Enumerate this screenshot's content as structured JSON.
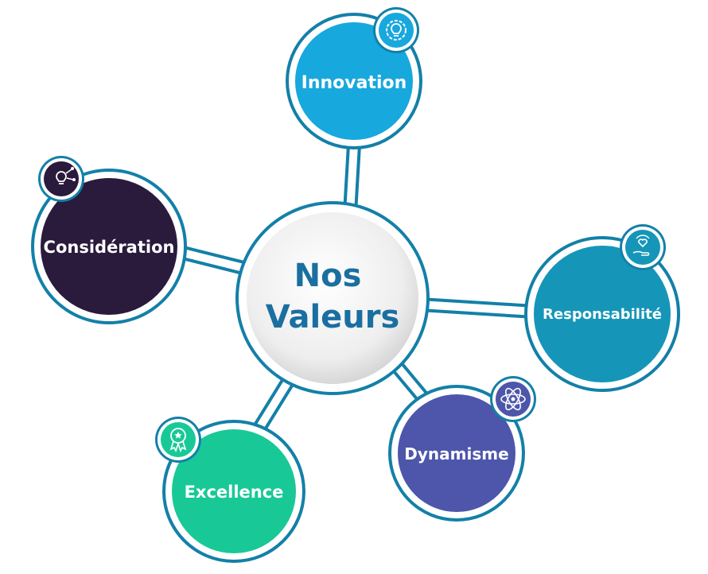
{
  "center": {
    "line1": "Nos",
    "line2": "Valeurs"
  },
  "values": [
    {
      "id": "innovation",
      "label": "Innovation",
      "color": "#17a8dd",
      "icon": "lightbulb-gear-icon",
      "badge_color": "#17a8dd"
    },
    {
      "id": "consideration",
      "label": "Considération",
      "color": "#2a1a3c",
      "icon": "lightbulb-network-icon",
      "badge_color": "#2a1a3c"
    },
    {
      "id": "responsabilite",
      "label": "Responsabilité",
      "color": "#1596b8",
      "icon": "hand-heart-icon",
      "badge_color": "#1596b8"
    },
    {
      "id": "dynamisme",
      "label": "Dynamisme",
      "color": "#4d56aa",
      "icon": "atom-icon",
      "badge_color": "#4d56aa"
    },
    {
      "id": "excellence",
      "label": "Excellence",
      "color": "#18c997",
      "icon": "award-ribbon-icon",
      "badge_color": "#18c997"
    }
  ],
  "colors": {
    "ring": "#1380a8",
    "center_text": "#1a6fa0"
  }
}
